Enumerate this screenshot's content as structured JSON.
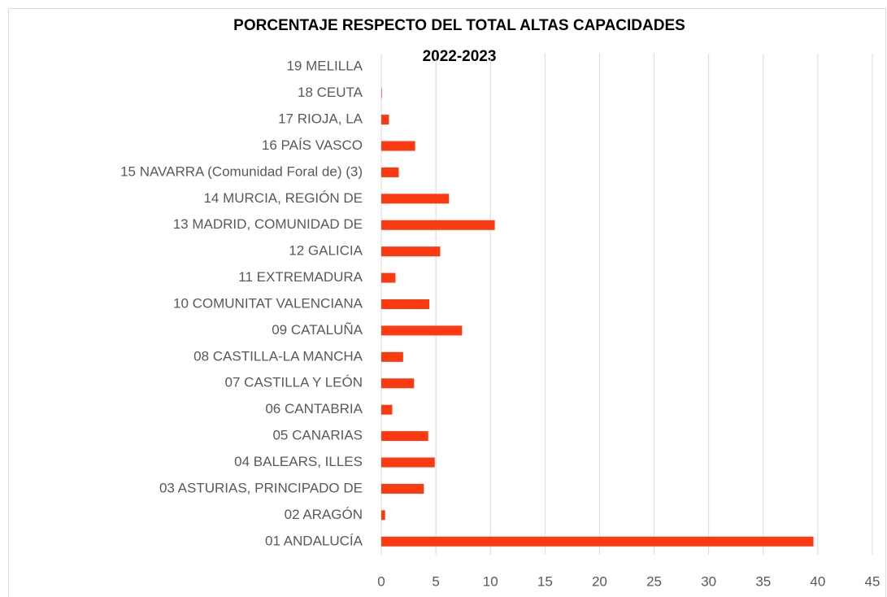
{
  "chart_data": {
    "type": "bar",
    "orientation": "horizontal",
    "title": "PORCENTAJE RESPECTO DEL TOTAL ALTAS CAPACIDADES",
    "subtitle": "2022-2023",
    "categories": [
      "01 ANDALUCÍA",
      "02 ARAGÓN",
      "03 ASTURIAS, PRINCIPADO DE",
      "04 BALEARS, ILLES",
      "05 CANARIAS",
      "06 CANTABRIA",
      "07 CASTILLA Y LEÓN",
      "08 CASTILLA-LA MANCHA",
      "09 CATALUÑA",
      "10 COMUNITAT VALENCIANA",
      "11 EXTREMADURA",
      "12 GALICIA",
      "13 MADRID, COMUNIDAD DE",
      "14 MURCIA, REGIÓN DE",
      "15 NAVARRA (Comunidad Foral de) (3)",
      "16 PAÍS VASCO",
      "17 RIOJA, LA",
      "18 CEUTA",
      "19 MELILLA"
    ],
    "values": [
      39.6,
      0.35,
      3.9,
      4.9,
      4.3,
      1.0,
      3.0,
      2.0,
      7.4,
      4.4,
      1.3,
      5.4,
      10.4,
      6.2,
      1.6,
      3.1,
      0.7,
      0.05,
      0
    ],
    "color": "#fc3a12",
    "xlim": [
      0,
      45
    ],
    "xticks": [
      0,
      5,
      10,
      15,
      20,
      25,
      30,
      35,
      40,
      45
    ],
    "grid": true
  }
}
